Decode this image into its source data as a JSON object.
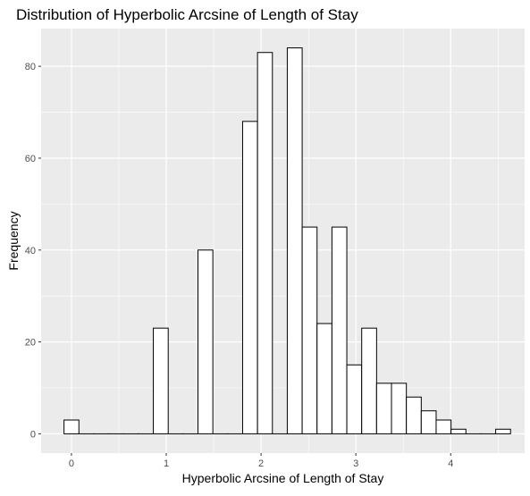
{
  "chart_data": {
    "type": "bar",
    "title": "Distribution of Hyperbolic Arcsine of Length of Stay",
    "xlabel": "Hyperbolic Arcsine of Length of Stay",
    "ylabel": "Frequency",
    "x_ticks": [
      0,
      1,
      2,
      3,
      4
    ],
    "y_ticks": [
      0,
      20,
      40,
      60,
      80
    ],
    "x_tick_labels": [
      "0",
      "1",
      "2",
      "3",
      "4"
    ],
    "y_tick_labels": [
      "0",
      "20",
      "40",
      "60",
      "80"
    ],
    "xlim": [
      -0.32,
      4.78
    ],
    "ylim": [
      -4.2,
      88.2
    ],
    "bin_width": 0.157,
    "bins": [
      {
        "x": 0.0,
        "count": 3
      },
      {
        "x": 0.157,
        "count": 0
      },
      {
        "x": 0.314,
        "count": 0
      },
      {
        "x": 0.471,
        "count": 0
      },
      {
        "x": 0.628,
        "count": 0
      },
      {
        "x": 0.785,
        "count": 0
      },
      {
        "x": 0.942,
        "count": 23
      },
      {
        "x": 1.099,
        "count": 0
      },
      {
        "x": 1.256,
        "count": 0
      },
      {
        "x": 1.413,
        "count": 40
      },
      {
        "x": 1.57,
        "count": 0
      },
      {
        "x": 1.727,
        "count": 0
      },
      {
        "x": 1.884,
        "count": 68
      },
      {
        "x": 2.041,
        "count": 83
      },
      {
        "x": 2.198,
        "count": 0
      },
      {
        "x": 2.355,
        "count": 84
      },
      {
        "x": 2.512,
        "count": 45
      },
      {
        "x": 2.669,
        "count": 24
      },
      {
        "x": 2.826,
        "count": 45
      },
      {
        "x": 2.983,
        "count": 15
      },
      {
        "x": 3.14,
        "count": 23
      },
      {
        "x": 3.297,
        "count": 11
      },
      {
        "x": 3.454,
        "count": 11
      },
      {
        "x": 3.611,
        "count": 8
      },
      {
        "x": 3.768,
        "count": 5
      },
      {
        "x": 3.925,
        "count": 3
      },
      {
        "x": 4.082,
        "count": 1
      },
      {
        "x": 4.239,
        "count": 0
      },
      {
        "x": 4.396,
        "count": 0
      },
      {
        "x": 4.553,
        "count": 1
      }
    ],
    "colors": {
      "panel_background": "#EBEBEB",
      "grid": "#FFFFFF",
      "bar_fill": "#FFFFFF",
      "bar_stroke": "#000000",
      "tick_label": "#4D4D4D",
      "text": "#000000"
    },
    "grid": true,
    "legend": "none"
  }
}
